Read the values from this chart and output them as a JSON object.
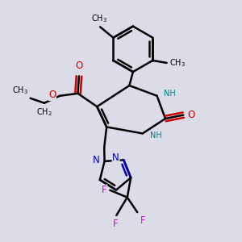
{
  "background_color": "#dcdce8",
  "line_color": "#000000",
  "bond_width": 1.8,
  "atom_colors": {
    "N": "#0000bb",
    "O": "#cc0000",
    "F": "#dd00dd",
    "NH": "#008080"
  },
  "font_size_atom": 8.5,
  "font_size_small": 7.0,
  "figsize": [
    3.0,
    3.0
  ],
  "dpi": 100
}
